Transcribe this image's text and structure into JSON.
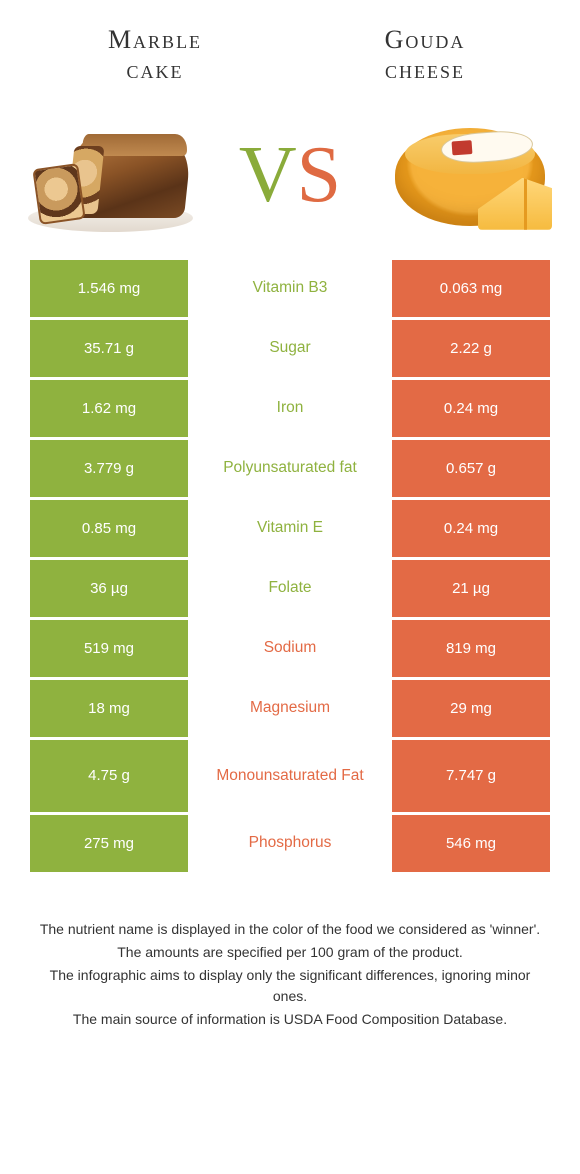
{
  "colors": {
    "left": "#8fb23f",
    "right": "#e36a45",
    "text": "#333333"
  },
  "header": {
    "left_title": "Marble\ncake",
    "right_title": "Gouda\ncheese",
    "vs_v": "V",
    "vs_s": "S"
  },
  "table": {
    "rows": [
      {
        "left": "1.546 mg",
        "name": "Vitamin B3",
        "winner": "left",
        "right": "0.063 mg"
      },
      {
        "left": "35.71 g",
        "name": "Sugar",
        "winner": "left",
        "right": "2.22 g"
      },
      {
        "left": "1.62 mg",
        "name": "Iron",
        "winner": "left",
        "right": "0.24 mg"
      },
      {
        "left": "3.779 g",
        "name": "Polyunsaturated fat",
        "winner": "left",
        "right": "0.657 g"
      },
      {
        "left": "0.85 mg",
        "name": "Vitamin E",
        "winner": "left",
        "right": "0.24 mg"
      },
      {
        "left": "36 µg",
        "name": "Folate",
        "winner": "left",
        "right": "21 µg"
      },
      {
        "left": "519 mg",
        "name": "Sodium",
        "winner": "right",
        "right": "819 mg"
      },
      {
        "left": "18 mg",
        "name": "Magnesium",
        "winner": "right",
        "right": "29 mg"
      },
      {
        "left": "4.75 g",
        "name": "Monounsaturated Fat",
        "winner": "right",
        "right": "7.747 g",
        "tall": true
      },
      {
        "left": "275 mg",
        "name": "Phosphorus",
        "winner": "right",
        "right": "546 mg"
      }
    ]
  },
  "footer": {
    "l1": "The nutrient name is displayed in the color of the food we considered as 'winner'.",
    "l2": "The amounts are specified per 100 gram of the product.",
    "l3": "The infographic aims to display only the significant differences, ignoring minor ones.",
    "l4": "The main source of information is USDA Food Composition Database."
  }
}
